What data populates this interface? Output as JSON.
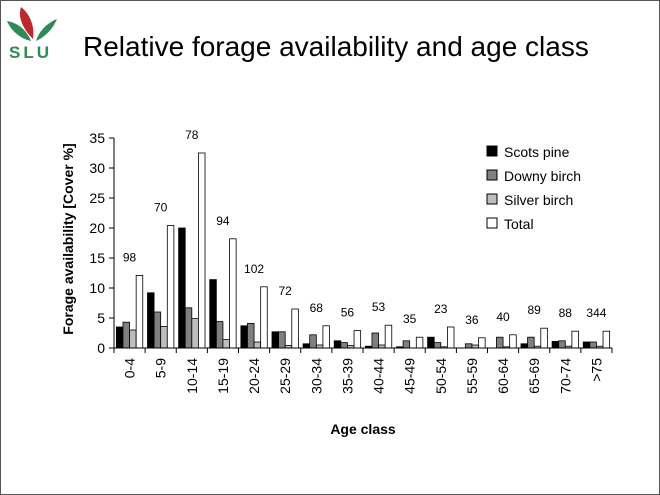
{
  "logo": {
    "text": "SLU",
    "colors": {
      "red": "#c0282d",
      "green": "#2e8b57"
    }
  },
  "slide": {
    "title": "Relative forage availability and age class"
  },
  "chart_data": {
    "type": "bar",
    "title": "",
    "xlabel": "Age class",
    "ylabel": "Forage availability [Cover %]",
    "ylim": [
      0,
      35
    ],
    "yticks": [
      0,
      5,
      10,
      15,
      20,
      25,
      30,
      35
    ],
    "grid": false,
    "legend_position": "top-right",
    "categories": [
      "0-4",
      "5-9",
      "10-14",
      "15-19",
      "20-24",
      "25-29",
      "30-34",
      "35-39",
      "40-44",
      "45-49",
      "50-54",
      "55-59",
      "60-64",
      "65-69",
      "70-74",
      ">75"
    ],
    "series": [
      {
        "name": "Scots pine",
        "color": "#000000",
        "values": [
          3.5,
          9.2,
          20.0,
          11.4,
          3.7,
          2.7,
          0.7,
          1.2,
          0.3,
          0.2,
          1.8,
          0.0,
          0.0,
          0.7,
          1.1,
          1.0
        ]
      },
      {
        "name": "Downy birch",
        "color": "#808080",
        "values": [
          4.3,
          6.0,
          6.7,
          4.4,
          4.1,
          2.7,
          2.2,
          0.9,
          2.5,
          1.2,
          0.9,
          0.7,
          1.8,
          1.8,
          1.2,
          1.0
        ]
      },
      {
        "name": "Silver birch",
        "color": "#bdbdbd",
        "values": [
          3.0,
          3.6,
          4.9,
          1.4,
          1.0,
          0.4,
          0.5,
          0.4,
          0.5,
          0.0,
          0.2,
          0.5,
          0.2,
          0.3,
          0.3,
          0.3
        ]
      },
      {
        "name": "Total",
        "color": "#ffffff",
        "values": [
          12.1,
          20.4,
          32.5,
          18.2,
          10.2,
          6.5,
          3.7,
          2.9,
          3.8,
          1.8,
          3.5,
          1.7,
          2.2,
          3.3,
          2.8,
          2.8
        ]
      }
    ],
    "annotations": [
      "98",
      "70",
      "78",
      "94",
      "102",
      "72",
      "68",
      "56",
      "53",
      "35",
      "23",
      "36",
      "40",
      "89",
      "88",
      "344"
    ]
  }
}
